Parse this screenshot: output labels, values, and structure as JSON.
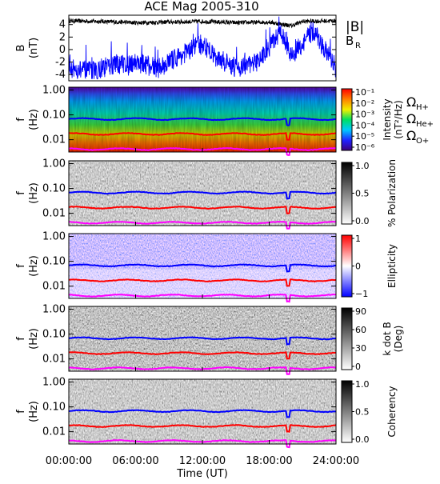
{
  "title": "ACE Mag 2005-310",
  "x_axis": {
    "label": "Time (UT)",
    "ticks": [
      "00:00:00",
      "06:00:00",
      "12:00:00",
      "18:00:00",
      "24:00:00"
    ],
    "tick_hours": [
      0,
      6,
      12,
      18,
      24
    ],
    "range_hours": [
      0,
      24
    ]
  },
  "legend_lines": {
    "B_abs": "|B|",
    "B_R_main": "B",
    "B_R_sub": "R",
    "omega_symbol": "Ω",
    "omega_H": "H+",
    "omega_He": "He+",
    "omega_O": "O+"
  },
  "freq_ticks": [
    "1.00",
    "0.10",
    "0.01"
  ],
  "freq_tick_values": [
    1.0,
    0.1,
    0.01
  ],
  "freq_axis_label_main": "f",
  "freq_axis_label_unit": "(Hz)",
  "colors": {
    "B_abs": "#000000",
    "B_R": "#0000ff",
    "omega_H": "#0000ff",
    "omega_He": "#ff0000",
    "omega_O": "#ff00ff"
  },
  "chart_data": [
    {
      "type": "line",
      "panel": "magnetic field",
      "ylabel_main": "B",
      "ylabel_unit": "(nT)",
      "yticks": [
        "4",
        "2",
        "0",
        "-2",
        "-4"
      ],
      "ylim": [
        -5,
        5.5
      ],
      "series": [
        {
          "name": "|B|",
          "x_hours": [
            0,
            3,
            6,
            9,
            12,
            15,
            18,
            20,
            21,
            24
          ],
          "values": [
            4.6,
            4.5,
            4.3,
            4.4,
            4.5,
            4.3,
            4.4,
            3.8,
            4.5,
            4.6
          ]
        },
        {
          "name": "B_R",
          "x_hours": [
            0,
            2,
            4,
            6,
            8,
            10,
            12,
            13,
            15,
            17,
            19,
            20,
            22,
            24
          ],
          "values": [
            -3,
            -3.5,
            -2.5,
            -2,
            -3,
            -1,
            1,
            -1,
            -3,
            -2,
            3,
            -1,
            3,
            -3
          ]
        }
      ]
    },
    {
      "type": "heatmap",
      "panel": "power spectrum",
      "colorbar_label_main": "Intensity",
      "colorbar_label_unit": "(nT²/Hz)",
      "colorbar_ticks": [
        "10⁻¹",
        "10⁻²",
        "10⁻³",
        "10⁻⁴",
        "10⁻⁵",
        "10⁻⁶"
      ],
      "colormap": "rainbow"
    },
    {
      "type": "heatmap",
      "panel": "polarization",
      "colorbar_label": "% Polarization",
      "colorbar_ticks": [
        "1.0",
        "0.5",
        "0.0"
      ],
      "colormap": "gray"
    },
    {
      "type": "heatmap",
      "panel": "ellipticity",
      "colorbar_label": "Ellipticity",
      "colorbar_ticks": [
        "1",
        "0",
        "−1"
      ],
      "colormap": "blue-white-red"
    },
    {
      "type": "heatmap",
      "panel": "k dot B",
      "colorbar_label_main": "k dot B",
      "colorbar_label_unit": "(Deg)",
      "colorbar_ticks": [
        "90",
        "60",
        "30",
        "0"
      ],
      "colormap": "gray"
    },
    {
      "type": "heatmap",
      "panel": "coherency",
      "colorbar_label": "Coherency",
      "colorbar_ticks": [
        "1.0",
        "0.5",
        "0.0"
      ],
      "colormap": "gray"
    }
  ],
  "gyrofrequency_hz": {
    "H+": 0.068,
    "He+": 0.017,
    "O+": 0.0042
  },
  "dip_hour": 19.7
}
